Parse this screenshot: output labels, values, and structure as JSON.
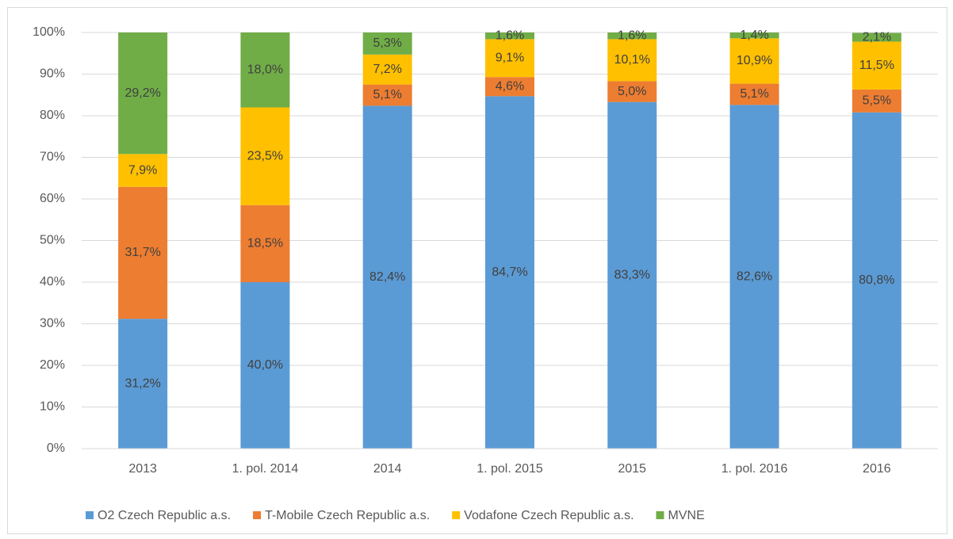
{
  "chart_data": {
    "type": "stacked_bar",
    "categories": [
      "2013",
      "1. pol. 2014",
      "2014",
      "1. pol. 2015",
      "2015",
      "1. pol. 2016",
      "2016"
    ],
    "series": [
      {
        "name": "O2 Czech Republic a.s.",
        "color": "#5b9bd5",
        "values": [
          31.2,
          40.0,
          82.4,
          84.7,
          83.3,
          82.6,
          80.8
        ],
        "value_labels": [
          "31,2%",
          "40,0%",
          "82,4%",
          "84,7%",
          "83,3%",
          "82,6%",
          "80,8%"
        ]
      },
      {
        "name": "T-Mobile Czech Republic a.s.",
        "color": "#ed7d31",
        "values": [
          31.7,
          18.5,
          5.1,
          4.6,
          5.0,
          5.1,
          5.5
        ],
        "value_labels": [
          "31,7%",
          "18,5%",
          "5,1%",
          "4,6%",
          "5,0%",
          "5,1%",
          "5,5%"
        ]
      },
      {
        "name": "Vodafone Czech Republic a.s.",
        "color": "#ffc000",
        "values": [
          7.9,
          23.5,
          7.2,
          9.1,
          10.1,
          10.9,
          11.5
        ],
        "value_labels": [
          "7,9%",
          "23,5%",
          "7,2%",
          "9,1%",
          "10,1%",
          "10,9%",
          "11,5%"
        ]
      },
      {
        "name": "MVNE",
        "color": "#70ad47",
        "values": [
          29.2,
          18.0,
          5.3,
          1.6,
          1.6,
          1.4,
          2.1
        ],
        "value_labels": [
          "29,2%",
          "18,0%",
          "5,3%",
          "1,6%",
          "1,6%",
          "1,4%",
          "2,1%"
        ]
      }
    ],
    "ylim": [
      0,
      100
    ],
    "yticks": [
      {
        "value": 0,
        "label": "0%"
      },
      {
        "value": 10,
        "label": "10%"
      },
      {
        "value": 20,
        "label": "20%"
      },
      {
        "value": 30,
        "label": "30%"
      },
      {
        "value": 40,
        "label": "40%"
      },
      {
        "value": 50,
        "label": "50%"
      },
      {
        "value": 60,
        "label": "60%"
      },
      {
        "value": 70,
        "label": "70%"
      },
      {
        "value": 80,
        "label": "80%"
      },
      {
        "value": 90,
        "label": "90%"
      },
      {
        "value": 100,
        "label": "100%"
      }
    ],
    "grid": true,
    "legend": "bottom"
  }
}
